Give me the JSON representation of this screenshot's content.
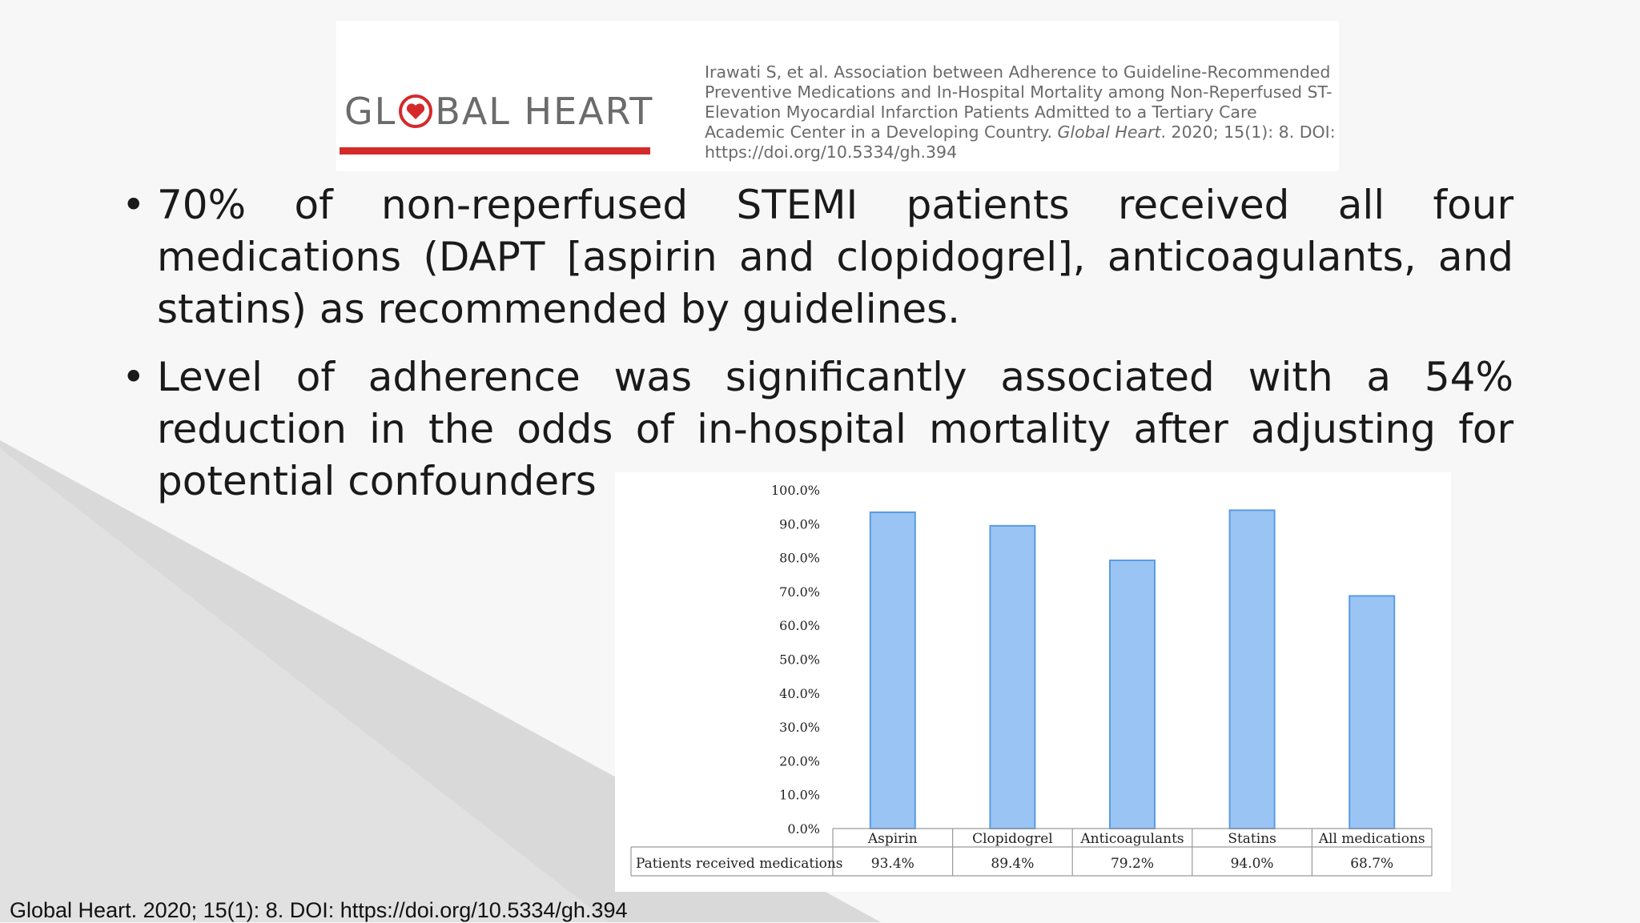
{
  "header": {
    "logo_prefix": "GL",
    "logo_suffix": "BAL HEART",
    "citation_main": "Irawati S, et al. Association between Adherence to Guideline-Recommended Preventive Medications and In-Hospital Mortality among Non-Reperfused ST-Elevation Myocardial Infarction Patients Admitted to a Tertiary Care Academic Center in a Developing Country. ",
    "citation_journal": "Global Heart",
    "citation_tail": ". 2020; 15(1): 8. DOI: https://doi.org/10.5334/gh.394"
  },
  "bullets": [
    {
      "mark": "•",
      "text": "70% of non-reperfused STEMI patients received all four medications (DAPT [aspirin and clopidogrel], anticoagulants, and statins) as recommended by guidelines."
    },
    {
      "mark": "•",
      "text": "Level of adherence was significantly associated with a 54% reduction in the odds of in-hospital mortality after adjusting for potential confounders"
    }
  ],
  "footer": {
    "text": "Global Heart. 2020; 15(1): 8. DOI: https://doi.org/10.5334/gh.394"
  },
  "chart_data": {
    "type": "bar",
    "categories": [
      "Aspirin",
      "Clopidogrel",
      "Anticoagulants",
      "Statins",
      "All medications"
    ],
    "series": [
      {
        "name": "Patients received medications",
        "values": [
          93.4,
          89.4,
          79.2,
          94.0,
          68.7
        ]
      }
    ],
    "data_labels": [
      "93.4%",
      "89.4%",
      "79.2%",
      "94.0%",
      "68.7%"
    ],
    "y_ticks": [
      "0.0%",
      "10.0%",
      "20.0%",
      "30.0%",
      "40.0%",
      "50.0%",
      "60.0%",
      "70.0%",
      "80.0%",
      "90.0%",
      "100.0%"
    ],
    "ylim": [
      0,
      100
    ],
    "title": "",
    "xlabel": "",
    "ylabel": "",
    "grid": false,
    "data_table": true,
    "bar_color": "#99c4f4",
    "bar_edge_color": "#5b9be0"
  },
  "colors": {
    "accent_red": "#d42a2a",
    "background": "#f7f7f7",
    "logo_gray": "#6b6b6b"
  }
}
